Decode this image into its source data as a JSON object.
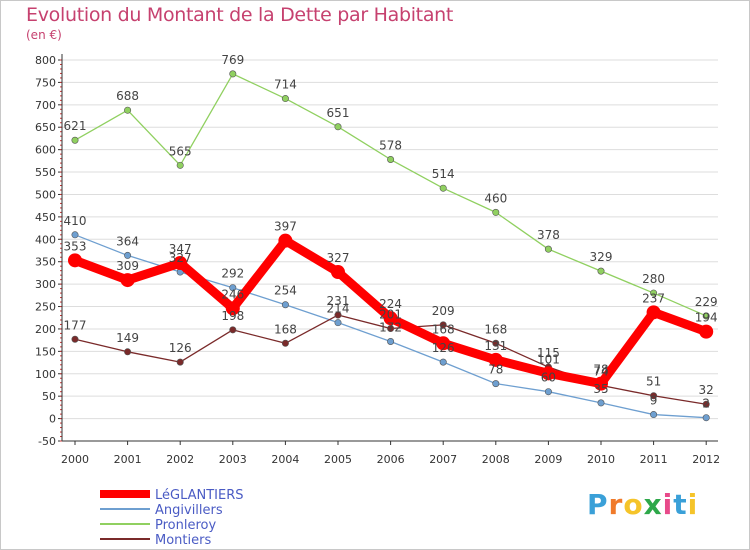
{
  "title": "Evolution du Montant de la Dette par Habitant",
  "subtitle": "(en €)",
  "logo": "Proxiti",
  "colors": {
    "title": "#c6416f",
    "axis": "#333333",
    "grid": "#dddddd",
    "legend_text": "#4a5bc4"
  },
  "chart_data": {
    "type": "line",
    "x": [
      "2000",
      "2001",
      "2002",
      "2003",
      "2004",
      "2005",
      "2006",
      "2007",
      "2008",
      "2009",
      "2010",
      "2011",
      "2012"
    ],
    "ylim": [
      -50,
      800
    ],
    "yticks": [
      -50,
      0,
      50,
      100,
      150,
      200,
      250,
      300,
      350,
      400,
      450,
      500,
      550,
      600,
      650,
      700,
      750,
      800
    ],
    "grid": true,
    "legend_position": "bottom-left",
    "series": [
      {
        "name": "LéGLANTIERS",
        "color": "#ff0000",
        "values": [
          353,
          309,
          347,
          246,
          397,
          327,
          224,
          168,
          131,
          101,
          78,
          237,
          194
        ],
        "labels": [
          "353",
          "309",
          "347",
          "246",
          "397",
          "327",
          "224",
          "168",
          "131",
          "101",
          "78",
          "237",
          "194"
        ]
      },
      {
        "name": "Angivillers",
        "color": "#6e9fd0",
        "values": [
          410,
          364,
          327,
          292,
          254,
          214,
          172,
          126,
          78,
          60,
          35,
          9,
          2
        ],
        "labels": [
          "410",
          "364",
          "327",
          "292",
          "254",
          "214",
          "172",
          "126",
          "78",
          "60",
          "35",
          "9",
          "2"
        ]
      },
      {
        "name": "Pronleroy",
        "color": "#90d060",
        "values": [
          621,
          688,
          565,
          769,
          714,
          651,
          578,
          514,
          460,
          378,
          329,
          280,
          229
        ],
        "labels": [
          "621",
          "688",
          "565",
          "769",
          "714",
          "651",
          "578",
          "514",
          "460",
          "378",
          "329",
          "280",
          "229"
        ]
      },
      {
        "name": "Montiers",
        "color": "#7a2a2a",
        "values": [
          177,
          149,
          126,
          198,
          168,
          231,
          201,
          209,
          168,
          115,
          74,
          51,
          32
        ],
        "labels": [
          "177",
          "149",
          "126",
          "198",
          "168",
          "231",
          "201",
          "209",
          "168",
          "115",
          "74",
          "51",
          "32"
        ]
      }
    ]
  }
}
